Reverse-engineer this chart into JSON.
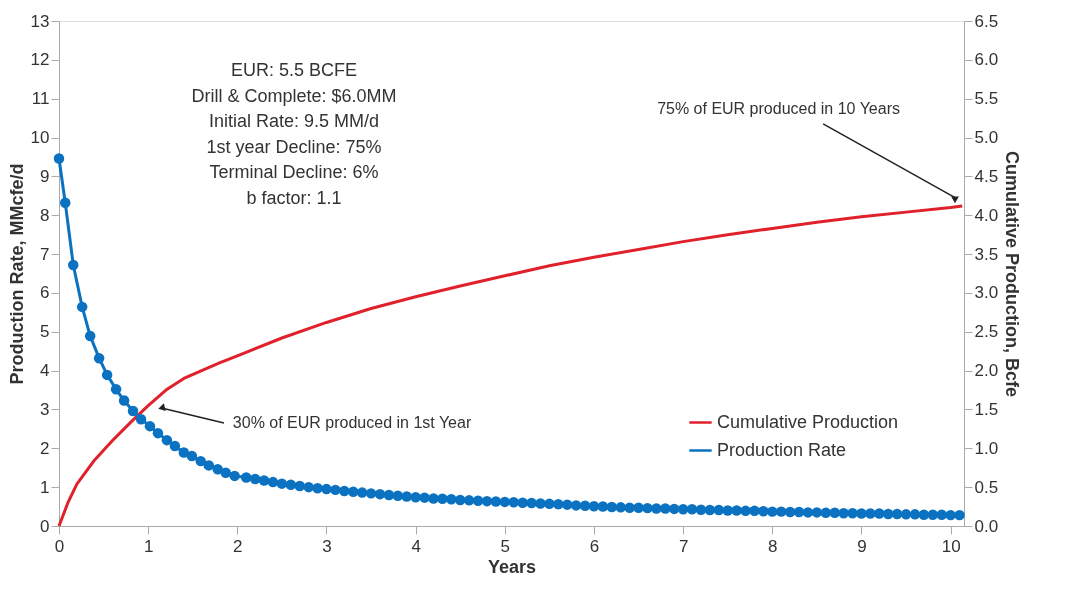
{
  "chart_data": {
    "type": "line",
    "xlabel": "Years",
    "ylabel": "Production Rate, MMcfe/d",
    "y2label": "Cumulative Production, Bcfe",
    "xlim": [
      0,
      10.15
    ],
    "xticks": [
      0,
      1,
      2,
      3,
      4,
      5,
      6,
      7,
      8,
      9,
      10
    ],
    "ylim": [
      0,
      13
    ],
    "yticks": [
      0,
      1,
      2,
      3,
      4,
      5,
      6,
      7,
      8,
      9,
      10,
      11,
      12,
      13
    ],
    "y2lim": [
      0,
      6.5
    ],
    "y2ticks": [
      {
        "value": 0,
        "label": "0.0"
      },
      0.5,
      {
        "value": 1,
        "label": "1.0"
      },
      1.5,
      {
        "value": 2,
        "label": "2.0"
      },
      2.5,
      {
        "value": 3,
        "label": "3.0"
      },
      3.5,
      {
        "value": 4,
        "label": "4.0"
      },
      4.5,
      {
        "value": 5,
        "label": "5.0"
      },
      5.5,
      {
        "value": 6,
        "label": "6.0"
      },
      6.5
    ],
    "grid": false,
    "legend": "bottom right",
    "series": [
      {
        "name": "Cumulative Production",
        "color": "#e0202a",
        "axis": "y2",
        "marker": "none",
        "x": [
          0,
          0.1,
          0.2,
          0.4,
          0.6,
          0.8,
          1,
          1.2,
          1.4,
          1.6,
          1.8,
          2,
          2.5,
          3,
          3.5,
          4,
          4.5,
          5,
          5.5,
          6,
          6.5,
          7,
          7.5,
          8,
          8.5,
          9,
          9.5,
          10,
          10.13
        ],
        "values": [
          0,
          0.3,
          0.54,
          0.85,
          1.1,
          1.33,
          1.55,
          1.75,
          1.9,
          2.0,
          2.1,
          2.19,
          2.42,
          2.62,
          2.8,
          2.95,
          3.09,
          3.22,
          3.35,
          3.46,
          3.56,
          3.66,
          3.75,
          3.83,
          3.91,
          3.98,
          4.04,
          4.1,
          4.12
        ]
      },
      {
        "name": "Production Rate",
        "color": "#0a72c0",
        "axis": "y",
        "marker": "circle",
        "x": [
          0,
          0.07,
          0.16,
          0.26,
          0.35,
          0.45,
          0.54,
          0.64,
          0.73,
          0.83,
          0.92,
          1.02,
          1.11,
          1.21,
          1.3,
          1.4,
          1.49,
          1.59,
          1.68,
          1.78,
          1.87,
          1.97,
          2.1,
          2.2,
          2.3,
          2.4,
          2.5,
          2.6,
          2.7,
          2.8,
          2.9,
          3.0,
          3.1,
          3.2,
          3.3,
          3.4,
          3.5,
          3.6,
          3.7,
          3.8,
          3.9,
          4.0,
          4.1,
          4.2,
          4.3,
          4.4,
          4.5,
          4.6,
          4.7,
          4.8,
          4.9,
          5.0,
          5.1,
          5.2,
          5.3,
          5.4,
          5.5,
          5.6,
          5.7,
          5.8,
          5.9,
          6.0,
          6.1,
          6.2,
          6.3,
          6.4,
          6.5,
          6.6,
          6.7,
          6.8,
          6.9,
          7.0,
          7.1,
          7.2,
          7.3,
          7.4,
          7.5,
          7.6,
          7.7,
          7.8,
          7.9,
          8.0,
          8.1,
          8.2,
          8.3,
          8.4,
          8.5,
          8.6,
          8.7,
          8.8,
          8.9,
          9.0,
          9.1,
          9.2,
          9.3,
          9.4,
          9.5,
          9.6,
          9.7,
          9.8,
          9.9,
          10.0,
          10.1
        ],
        "values": [
          9.46,
          8.32,
          6.72,
          5.64,
          4.89,
          4.32,
          3.89,
          3.52,
          3.23,
          2.96,
          2.75,
          2.57,
          2.39,
          2.21,
          2.06,
          1.89,
          1.8,
          1.67,
          1.56,
          1.46,
          1.37,
          1.29,
          1.25,
          1.21,
          1.17,
          1.13,
          1.09,
          1.06,
          1.03,
          1.0,
          0.97,
          0.95,
          0.93,
          0.9,
          0.88,
          0.86,
          0.84,
          0.82,
          0.8,
          0.78,
          0.76,
          0.74,
          0.73,
          0.71,
          0.7,
          0.69,
          0.67,
          0.66,
          0.65,
          0.64,
          0.63,
          0.62,
          0.61,
          0.6,
          0.59,
          0.58,
          0.57,
          0.56,
          0.55,
          0.53,
          0.52,
          0.51,
          0.5,
          0.49,
          0.48,
          0.47,
          0.47,
          0.46,
          0.45,
          0.45,
          0.44,
          0.43,
          0.43,
          0.42,
          0.41,
          0.41,
          0.4,
          0.4,
          0.39,
          0.39,
          0.38,
          0.37,
          0.37,
          0.36,
          0.36,
          0.35,
          0.35,
          0.34,
          0.34,
          0.33,
          0.33,
          0.32,
          0.32,
          0.32,
          0.31,
          0.31,
          0.3,
          0.3,
          0.29,
          0.29,
          0.29,
          0.28,
          0.28
        ]
      }
    ],
    "annotations": [
      "EUR: 5.5 BCFE",
      "Drill & Complete: $6.0MM",
      "Initial Rate: 9.5 MM/d",
      "1st year Decline: 75%",
      "Terminal Decline: 6%",
      "b factor: 1.1",
      {
        "text": "30% of EUR produced in 1st Year",
        "x": 1.15,
        "y": 3.04
      },
      {
        "text": "75% of EUR produced in 10 Years",
        "x": 10.06,
        "y": 8.44
      }
    ]
  }
}
